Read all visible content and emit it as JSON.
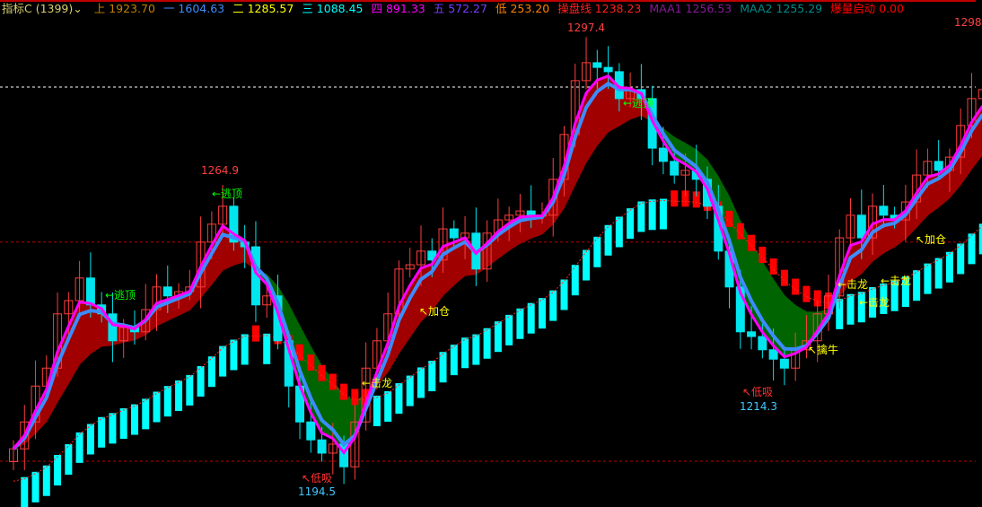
{
  "header": {
    "indicator": {
      "label": "指标C (1399)",
      "color": "#d8d070"
    },
    "dropdown_icon": "chevron-down-icon",
    "values": [
      {
        "name": "上",
        "value": "1923.70",
        "color": "#c08000"
      },
      {
        "name": "一",
        "value": "1604.63",
        "color": "#3c8cff"
      },
      {
        "name": "二",
        "value": "1285.57",
        "color": "#ffff00"
      },
      {
        "name": "三",
        "value": "1088.45",
        "color": "#00ffff"
      },
      {
        "name": "四",
        "value": "891.33",
        "color": "#ff00ff"
      },
      {
        "name": "五",
        "value": "572.27",
        "color": "#7a3cff"
      },
      {
        "name": "低",
        "value": "253.20",
        "color": "#ff8000"
      },
      {
        "name": "操盘线",
        "value": "1238.23",
        "color": "#ff2020"
      },
      {
        "name": "MAA1",
        "value": "1256.53",
        "color": "#8a1a9a"
      },
      {
        "name": "MAA2",
        "value": "1255.29",
        "color": "#008a8a"
      },
      {
        "name": "爆量启动",
        "value": "0.00",
        "color": "#ff0000"
      }
    ]
  },
  "chart_data": {
    "type": "candlestick",
    "ylim": [
      1189.0,
      1305.0
    ],
    "close": [
      1200.3,
      1206.6,
      1215.0,
      1219.2,
      1231.9,
      1235.0,
      1240.3,
      1234.0,
      1231.9,
      1225.6,
      1228.7,
      1227.7,
      1232.9,
      1238.2,
      1236.1,
      1237.1,
      1238.2,
      1248.7,
      1252.9,
      1257.1,
      1248.7,
      1247.6,
      1234.0,
      1236.1,
      1225.6,
      1215.0,
      1206.6,
      1202.4,
      1199.3,
      1201.4,
      1196.1,
      1206.6,
      1219.2,
      1225.6,
      1231.9,
      1242.4,
      1243.4,
      1246.6,
      1244.5,
      1251.8,
      1249.7,
      1250.8,
      1242.4,
      1250.8,
      1253.9,
      1255.0,
      1256.0,
      1255.0,
      1255.0,
      1263.4,
      1273.9,
      1286.5,
      1290.7,
      1289.6,
      1288.6,
      1282.3,
      1284.4,
      1282.3,
      1270.7,
      1267.6,
      1264.4,
      1265.5,
      1263.4,
      1257.1,
      1246.6,
      1238.2,
      1227.7,
      1226.6,
      1223.5,
      1221.3,
      1219.2,
      1223.5,
      1225.6,
      1231.9,
      1236.1,
      1249.7,
      1255.0,
      1249.7,
      1257.1,
      1255.0,
      1253.9,
      1258.1,
      1264.4,
      1267.6,
      1265.5,
      1268.6,
      1276.0,
      1282.3,
      1284.4
    ],
    "reference_lines": [
      {
        "price": 1285.0,
        "style": "dashed",
        "color": "#ffffff"
      },
      {
        "price": 1248.7,
        "style": "dashed",
        "color": "#c00000"
      },
      {
        "price": 1197.4,
        "style": "dashed",
        "color": "#c00000"
      }
    ],
    "colors": {
      "up": "#ff3c3c",
      "down": "#00e5ee",
      "bull_band": "#a00000",
      "bear_band": "#006400",
      "fast": "#ff00ff",
      "mid": "#3c8cff",
      "trend_up": "#00ffff",
      "trend_down": "#ff0000"
    },
    "price_labels": [
      {
        "text": "1297.4",
        "color": "#ff4040"
      },
      {
        "text": "1264.9",
        "color": "#ff4040"
      },
      {
        "text": "1194.5",
        "color": "#40c8ff"
      },
      {
        "text": "1214.3",
        "color": "#40c8ff"
      },
      {
        "text": "1298",
        "color": "#ff4040"
      }
    ],
    "signals": [
      {
        "text": "←逃顶",
        "color": "#00ff00"
      },
      {
        "text": "←逃顶",
        "color": "#00ff00"
      },
      {
        "text": "←逃顶",
        "color": "#00ff00"
      },
      {
        "text": "←击龙",
        "color": "#ffff00"
      },
      {
        "text": "←击龙",
        "color": "#ffff00"
      },
      {
        "text": "←击龙",
        "color": "#ffff00"
      },
      {
        "text": "←击龙",
        "color": "#ffff00"
      },
      {
        "text": "↖加仓",
        "color": "#ffff00"
      },
      {
        "text": "↖加仓",
        "color": "#ffff00"
      },
      {
        "text": "↖低吸",
        "color": "#ff3030"
      },
      {
        "text": "↖低吸",
        "color": "#ff3030"
      },
      {
        "text": "↖擒牛",
        "color": "#ffff00"
      }
    ]
  }
}
